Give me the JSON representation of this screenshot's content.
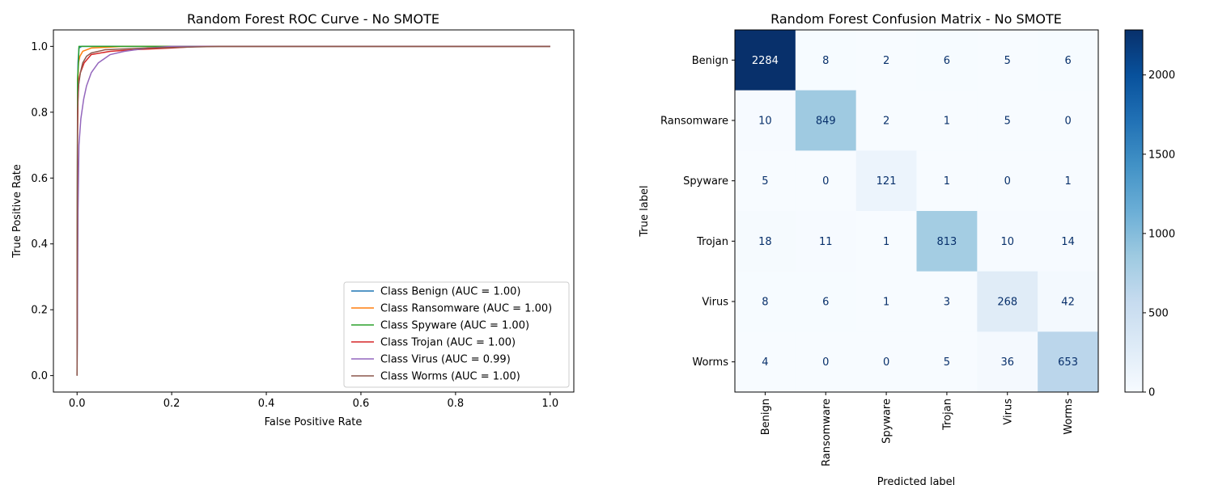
{
  "chart_data": [
    {
      "type": "line",
      "title": "Random Forest ROC Curve - No SMOTE",
      "xlabel": "False Positive Rate",
      "ylabel": "True Positive Rate",
      "xlim": [
        -0.05,
        1.05
      ],
      "ylim": [
        -0.05,
        1.05
      ],
      "xticks": [
        "0.0",
        "0.2",
        "0.4",
        "0.6",
        "0.8",
        "1.0"
      ],
      "yticks": [
        "0.0",
        "0.2",
        "0.4",
        "0.6",
        "0.8",
        "1.0"
      ],
      "grid": false,
      "legend_position": "lower-right",
      "series": [
        {
          "name": "Class Benign (AUC = 1.00)",
          "color": "#1f77b4",
          "points": [
            [
              0,
              0
            ],
            [
              0.001,
              0.85
            ],
            [
              0.002,
              0.95
            ],
            [
              0.004,
              0.995
            ],
            [
              0.01,
              1.0
            ],
            [
              1.0,
              1.0
            ]
          ]
        },
        {
          "name": "Class Ransomware (AUC = 1.00)",
          "color": "#ff7f0e",
          "points": [
            [
              0,
              0
            ],
            [
              0.001,
              0.85
            ],
            [
              0.003,
              0.95
            ],
            [
              0.006,
              0.97
            ],
            [
              0.012,
              0.985
            ],
            [
              0.03,
              0.995
            ],
            [
              0.1,
              1.0
            ],
            [
              1.0,
              1.0
            ]
          ]
        },
        {
          "name": "Class Spyware (AUC = 1.00)",
          "color": "#2ca02c",
          "points": [
            [
              0,
              0
            ],
            [
              0.001,
              0.9
            ],
            [
              0.003,
              0.95
            ],
            [
              0.004,
              1.0
            ],
            [
              1.0,
              1.0
            ]
          ]
        },
        {
          "name": "Class Trojan (AUC = 1.00)",
          "color": "#d62728",
          "points": [
            [
              0,
              0
            ],
            [
              0.001,
              0.72
            ],
            [
              0.002,
              0.84
            ],
            [
              0.004,
              0.9
            ],
            [
              0.007,
              0.92
            ],
            [
              0.015,
              0.95
            ],
            [
              0.03,
              0.975
            ],
            [
              0.07,
              0.985
            ],
            [
              0.12,
              0.99
            ],
            [
              0.2,
              0.995
            ],
            [
              0.26,
              1.0
            ],
            [
              1.0,
              1.0
            ]
          ]
        },
        {
          "name": "Class Virus (AUC = 0.99)",
          "color": "#9467bd",
          "points": [
            [
              0,
              0
            ],
            [
              0.002,
              0.5
            ],
            [
              0.004,
              0.7
            ],
            [
              0.008,
              0.78
            ],
            [
              0.014,
              0.84
            ],
            [
              0.02,
              0.88
            ],
            [
              0.03,
              0.92
            ],
            [
              0.045,
              0.95
            ],
            [
              0.07,
              0.975
            ],
            [
              0.1,
              0.985
            ],
            [
              0.15,
              0.995
            ],
            [
              0.2,
              1.0
            ],
            [
              1.0,
              1.0
            ]
          ]
        },
        {
          "name": "Class Worms (AUC = 1.00)",
          "color": "#8c564b",
          "points": [
            [
              0,
              0
            ],
            [
              0.001,
              0.8
            ],
            [
              0.003,
              0.88
            ],
            [
              0.007,
              0.92
            ],
            [
              0.012,
              0.95
            ],
            [
              0.02,
              0.97
            ],
            [
              0.03,
              0.98
            ],
            [
              0.06,
              0.99
            ],
            [
              0.15,
              0.995
            ],
            [
              0.3,
              1.0
            ],
            [
              1.0,
              1.0
            ]
          ]
        }
      ]
    },
    {
      "type": "heatmap",
      "title": "Random Forest Confusion Matrix - No SMOTE",
      "xlabel": "Predicted label",
      "ylabel": "True label",
      "categories": [
        "Benign",
        "Ransomware",
        "Spyware",
        "Trojan",
        "Virus",
        "Worms"
      ],
      "matrix": [
        [
          2284,
          8,
          2,
          6,
          5,
          6
        ],
        [
          10,
          849,
          2,
          1,
          5,
          0
        ],
        [
          5,
          0,
          121,
          1,
          0,
          1
        ],
        [
          18,
          11,
          1,
          813,
          10,
          14
        ],
        [
          8,
          6,
          1,
          3,
          268,
          42
        ],
        [
          4,
          0,
          0,
          5,
          36,
          653
        ]
      ],
      "colormap": "Blues",
      "colorbar_ticks": [
        "0",
        "500",
        "1000",
        "1500",
        "2000"
      ],
      "colorbar_range": [
        0,
        2284
      ]
    }
  ]
}
